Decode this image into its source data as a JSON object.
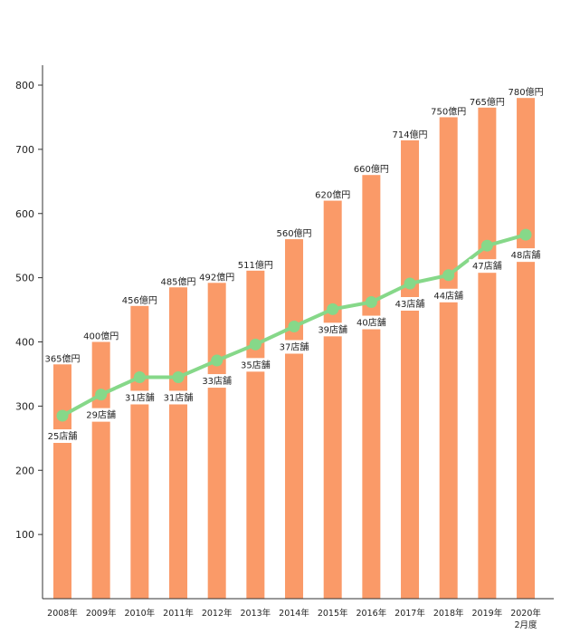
{
  "chart_data": {
    "type": "bar",
    "categories": [
      "2008年",
      "2009年",
      "2010年",
      "2011年",
      "2012年",
      "2013年",
      "2014年",
      "2015年",
      "2016年",
      "2017年",
      "2018年",
      "2019年",
      "2020年\n2月度"
    ],
    "ylim": [
      0,
      840
    ],
    "yticks": [
      100,
      200,
      300,
      400,
      500,
      600,
      700,
      800
    ],
    "grid": false,
    "series": [
      {
        "type": "bar",
        "color": "#fa9a68",
        "values": [
          365,
          400,
          456,
          485,
          492,
          511,
          560,
          620,
          660,
          714,
          750,
          765,
          780
        ],
        "labels": [
          "365億円",
          "400億円",
          "456億円",
          "485億円",
          "492億円",
          "511億円",
          "560億円",
          "620億円",
          "660億円",
          "714億円",
          "750億円",
          "765億円",
          "780億円"
        ]
      },
      {
        "type": "line",
        "color": "#86d889",
        "stores": [
          25,
          29,
          31,
          31,
          33,
          35,
          37,
          39,
          40,
          43,
          44,
          47,
          48
        ],
        "values": [
          285,
          318,
          345,
          345,
          371,
          396,
          424,
          451,
          462,
          491,
          504,
          550,
          567
        ],
        "labels": [
          "25店舗",
          "29店舗",
          "31店舗",
          "31店舗",
          "33店舗",
          "35店舗",
          "37店舗",
          "39店舗",
          "40店舗",
          "43店舗",
          "44店舗",
          "47店舗",
          "48店舗"
        ]
      }
    ]
  }
}
